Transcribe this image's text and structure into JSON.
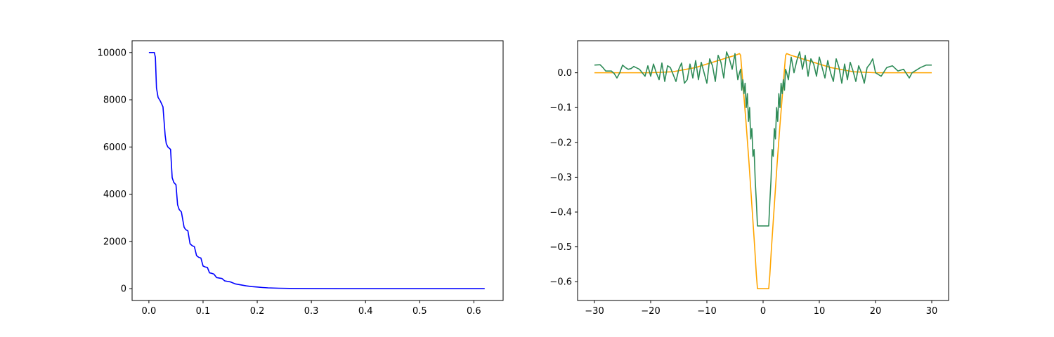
{
  "chart_data": [
    {
      "type": "line",
      "title": "",
      "xlabel": "",
      "ylabel": "",
      "xlim": [
        -0.031,
        0.654
      ],
      "ylim": [
        -500,
        10500
      ],
      "xticks": [
        0.0,
        0.1,
        0.2,
        0.3,
        0.4,
        0.5,
        0.6
      ],
      "xtick_labels": [
        "0.0",
        "0.1",
        "0.2",
        "0.3",
        "0.4",
        "0.5",
        "0.6"
      ],
      "yticks": [
        0,
        2000,
        4000,
        6000,
        8000,
        10000
      ],
      "ytick_labels": [
        "0",
        "2000",
        "4000",
        "6000",
        "8000",
        "10000"
      ],
      "grid": false,
      "series": [
        {
          "color": "#0000ff",
          "x": [
            0.0,
            0.01,
            0.012,
            0.014,
            0.017,
            0.021,
            0.026,
            0.03,
            0.032,
            0.035,
            0.04,
            0.043,
            0.046,
            0.05,
            0.053,
            0.056,
            0.06,
            0.065,
            0.068,
            0.072,
            0.076,
            0.08,
            0.084,
            0.088,
            0.092,
            0.096,
            0.1,
            0.104,
            0.108,
            0.112,
            0.116,
            0.12,
            0.125,
            0.13,
            0.135,
            0.14,
            0.145,
            0.15,
            0.16,
            0.17,
            0.18,
            0.19,
            0.2,
            0.21,
            0.22,
            0.24,
            0.26,
            0.28,
            0.3,
            0.35,
            0.4,
            0.5,
            0.62
          ],
          "y": [
            10000,
            10000,
            9800,
            8500,
            8100,
            7950,
            7700,
            6500,
            6150,
            6000,
            5900,
            4700,
            4500,
            4400,
            3550,
            3350,
            3250,
            2600,
            2500,
            2450,
            1900,
            1820,
            1780,
            1400,
            1330,
            1300,
            960,
            920,
            900,
            670,
            650,
            620,
            470,
            450,
            430,
            330,
            310,
            290,
            200,
            160,
            120,
            90,
            70,
            50,
            35,
            20,
            12,
            6,
            3,
            1,
            0,
            0,
            0
          ]
        }
      ]
    },
    {
      "type": "line",
      "title": "",
      "xlabel": "",
      "ylabel": "",
      "xlim": [
        -33,
        33
      ],
      "ylim": [
        -0.654,
        0.092
      ],
      "xticks": [
        -30,
        -20,
        -10,
        0,
        10,
        20,
        30
      ],
      "xtick_labels": [
        "−30",
        "−20",
        "−10",
        "0",
        "10",
        "20",
        "30"
      ],
      "yticks": [
        0.0,
        -0.1,
        -0.2,
        -0.3,
        -0.4,
        -0.5,
        -0.6
      ],
      "ytick_labels": [
        "0.0",
        "−0.1",
        "−0.2",
        "−0.3",
        "−0.4",
        "−0.5",
        "−0.6"
      ],
      "grid": false,
      "series": [
        {
          "color": "#ffa500",
          "x": [
            -30,
            -20,
            -16,
            -12,
            -8,
            -6,
            -5,
            -4.2,
            -4,
            -3.5,
            -3,
            -2.5,
            -2,
            -1.5,
            -1.2,
            -1,
            1,
            1.2,
            1.5,
            2,
            2.5,
            3,
            3.5,
            4,
            4.2,
            5,
            6,
            8,
            12,
            16,
            20,
            30
          ],
          "y": [
            0.0,
            0.0,
            0.003,
            0.015,
            0.035,
            0.045,
            0.05,
            0.055,
            0.05,
            -0.05,
            -0.15,
            -0.26,
            -0.38,
            -0.5,
            -0.58,
            -0.62,
            -0.62,
            -0.58,
            -0.5,
            -0.38,
            -0.26,
            -0.15,
            -0.05,
            0.05,
            0.055,
            0.05,
            0.045,
            0.035,
            0.015,
            0.003,
            0.0,
            0.0
          ]
        },
        {
          "color": "#2e8b57",
          "x": [
            -30,
            -29,
            -28.5,
            -28,
            -27,
            -26.5,
            -26,
            -25.5,
            -25,
            -24.5,
            -24,
            -23.5,
            -23,
            -22,
            -21,
            -20.5,
            -20,
            -19.5,
            -19,
            -18.5,
            -18,
            -17.5,
            -17,
            -16.5,
            -16,
            -15.5,
            -15,
            -14.5,
            -14,
            -13.5,
            -13,
            -12.5,
            -12,
            -11.5,
            -11,
            -10.5,
            -10,
            -9.5,
            -9,
            -8.5,
            -8,
            -7.5,
            -7,
            -6.5,
            -6,
            -5.5,
            -5,
            -4.8,
            -4.5,
            -4.2,
            -4,
            -3.8,
            -3.6,
            -3.4,
            -3.2,
            -3,
            -2.8,
            -2.6,
            -2.4,
            -2.2,
            -2,
            -1.8,
            -1.6,
            -1.4,
            -1.2,
            -1,
            1,
            1.2,
            1.4,
            1.6,
            1.8,
            2,
            2.2,
            2.4,
            2.6,
            2.8,
            3,
            3.2,
            3.4,
            3.6,
            3.8,
            4,
            4.2,
            4.5,
            4.8,
            5,
            5.5,
            6,
            6.5,
            7,
            7.5,
            8,
            8.5,
            9,
            9.5,
            10,
            10.5,
            11,
            11.5,
            12,
            12.5,
            13,
            13.5,
            14,
            14.5,
            15,
            15.5,
            16,
            16.5,
            17,
            17.5,
            18,
            18.5,
            19,
            19.5,
            20,
            21,
            22,
            23,
            24,
            25,
            26,
            26.5,
            27,
            28,
            29,
            30
          ],
          "y": [
            0.022,
            0.023,
            0.015,
            0.005,
            0.005,
            -0.002,
            -0.015,
            0.0,
            0.022,
            0.015,
            0.01,
            0.012,
            0.018,
            0.01,
            -0.01,
            0.02,
            -0.01,
            0.025,
            0.0,
            -0.02,
            0.028,
            -0.025,
            0.02,
            0.015,
            -0.005,
            -0.025,
            0.01,
            0.028,
            -0.03,
            -0.02,
            0.025,
            -0.015,
            0.035,
            -0.02,
            0.03,
            0.0,
            -0.03,
            0.04,
            0.02,
            -0.025,
            0.05,
            0.03,
            -0.015,
            0.06,
            0.04,
            0.01,
            0.055,
            0.02,
            -0.02,
            0.0,
            0.01,
            -0.05,
            -0.02,
            -0.06,
            -0.03,
            -0.1,
            -0.06,
            -0.14,
            -0.1,
            -0.19,
            -0.16,
            -0.24,
            -0.22,
            -0.31,
            -0.37,
            -0.44,
            -0.44,
            -0.37,
            -0.31,
            -0.22,
            -0.24,
            -0.16,
            -0.19,
            -0.1,
            -0.14,
            -0.06,
            -0.1,
            -0.03,
            -0.06,
            -0.02,
            -0.05,
            0.01,
            0.0,
            -0.02,
            0.02,
            0.045,
            0.0,
            0.035,
            0.06,
            0.01,
            0.05,
            -0.01,
            0.04,
            0.025,
            -0.01,
            0.045,
            0.015,
            -0.015,
            0.035,
            0.0,
            -0.025,
            0.04,
            0.015,
            -0.03,
            0.025,
            -0.02,
            0.03,
            0.005,
            -0.025,
            0.02,
            0.0,
            -0.03,
            0.015,
            0.025,
            0.04,
            0.0,
            -0.01,
            0.015,
            0.02,
            0.005,
            0.01,
            -0.015,
            0.0,
            0.005,
            0.015,
            0.022,
            0.022
          ]
        }
      ]
    }
  ]
}
